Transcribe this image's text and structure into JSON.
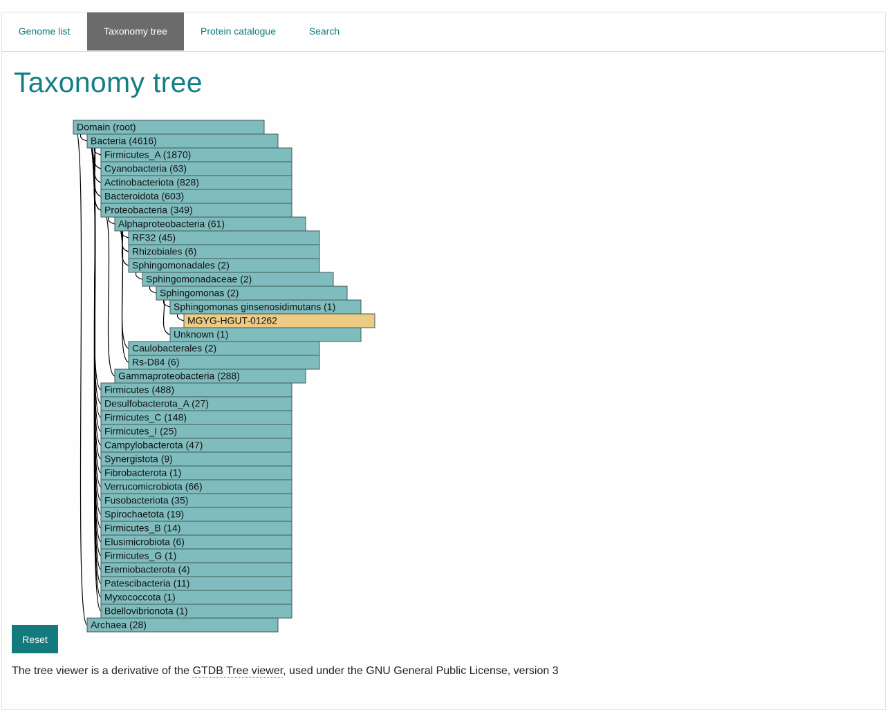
{
  "tabs": [
    {
      "label": "Genome list",
      "active": false
    },
    {
      "label": "Taxonomy tree",
      "active": true
    },
    {
      "label": "Protein catalogue",
      "active": false
    },
    {
      "label": "Search",
      "active": false
    }
  ],
  "page_title": "Taxonomy tree",
  "colors": {
    "node_fill": "#7fbcbd",
    "highlight_fill": "#eccb84",
    "accent": "#137a7d"
  },
  "tree": {
    "name": "Domain (root)",
    "children": [
      {
        "name": "Bacteria (4616)",
        "children": [
          {
            "name": "Firmicutes_A (1870)"
          },
          {
            "name": "Cyanobacteria (63)"
          },
          {
            "name": "Actinobacteriota (828)"
          },
          {
            "name": "Bacteroidota (603)"
          },
          {
            "name": "Proteobacteria (349)",
            "children": [
              {
                "name": "Alphaproteobacteria (61)",
                "children": [
                  {
                    "name": "RF32 (45)"
                  },
                  {
                    "name": "Rhizobiales (6)"
                  },
                  {
                    "name": "Sphingomonadales (2)",
                    "children": [
                      {
                        "name": "Sphingomonadaceae (2)",
                        "children": [
                          {
                            "name": "Sphingomonas (2)",
                            "children": [
                              {
                                "name": "Sphingomonas ginsenosidimutans (1)",
                                "children": [
                                  {
                                    "name": "MGYG-HGUT-01262",
                                    "highlight": true
                                  }
                                ]
                              },
                              {
                                "name": "Unknown (1)"
                              }
                            ]
                          }
                        ]
                      }
                    ]
                  },
                  {
                    "name": "Caulobacterales (2)"
                  },
                  {
                    "name": "Rs-D84 (6)"
                  }
                ]
              },
              {
                "name": "Gammaproteobacteria (288)"
              }
            ]
          },
          {
            "name": "Firmicutes (488)"
          },
          {
            "name": "Desulfobacterota_A (27)"
          },
          {
            "name": "Firmicutes_C (148)"
          },
          {
            "name": "Firmicutes_I (25)"
          },
          {
            "name": "Campylobacterota (47)"
          },
          {
            "name": "Synergistota (9)"
          },
          {
            "name": "Fibrobacterota (1)"
          },
          {
            "name": "Verrucomicrobiota (66)"
          },
          {
            "name": "Fusobacteriota (35)"
          },
          {
            "name": "Spirochaetota (19)"
          },
          {
            "name": "Firmicutes_B (14)"
          },
          {
            "name": "Elusimicrobiota (6)"
          },
          {
            "name": "Firmicutes_G (1)"
          },
          {
            "name": "Eremiobacterota (4)"
          },
          {
            "name": "Patescibacteria (11)"
          },
          {
            "name": "Myxococcota (1)"
          },
          {
            "name": "Bdellovibrionota (1)"
          }
        ]
      },
      {
        "name": "Archaea (28)"
      }
    ]
  },
  "reset_label": "Reset",
  "footer": {
    "prefix": "The tree viewer is a derivative of the ",
    "link_text": "GTDB Tree viewer",
    "suffix": ", used under the GNU General Public License, version 3"
  }
}
